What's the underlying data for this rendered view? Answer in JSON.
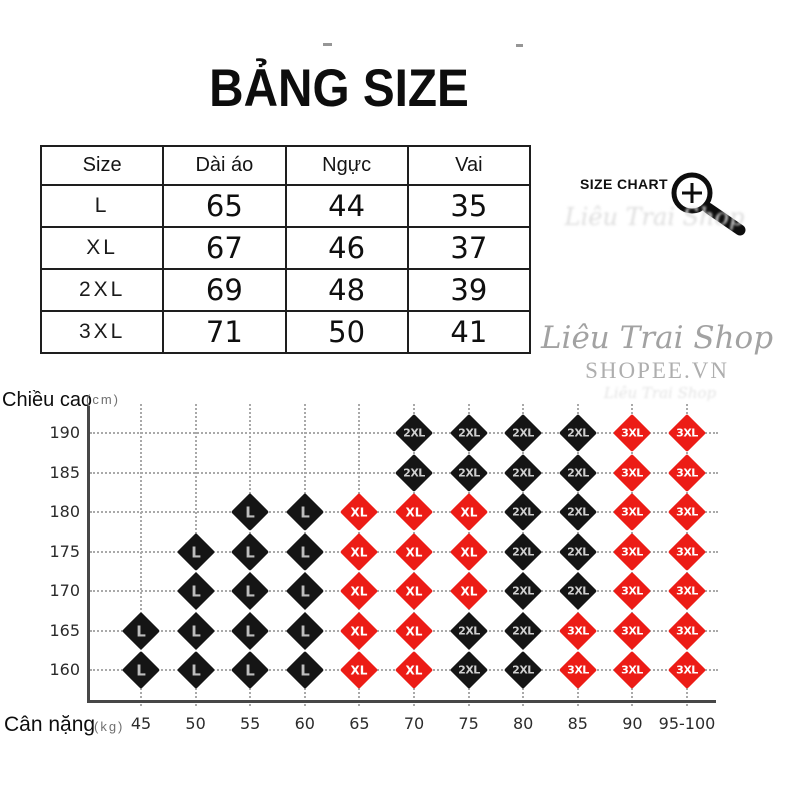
{
  "title": "BẢNG SIZE",
  "size_table": {
    "headers": [
      "Size",
      "Dài áo",
      "Ngực",
      "Vai"
    ],
    "rows": [
      [
        "L",
        "65",
        "44",
        "35"
      ],
      [
        "XL",
        "67",
        "46",
        "37"
      ],
      [
        "2XL",
        "69",
        "48",
        "39"
      ],
      [
        "3XL",
        "71",
        "50",
        "41"
      ]
    ]
  },
  "size_chart_badge": {
    "label": "SIZE CHART",
    "icon": "magnifier-plus-icon"
  },
  "watermark": {
    "line1": "Liêu Trai Shop",
    "line2": "SHOPEE.VN",
    "color": "#a2a2a2"
  },
  "chart_data": {
    "type": "scatter",
    "title": "",
    "xlabel": "Cân nặng",
    "xlabel_unit": "(kg)",
    "ylabel": "Chiều cao",
    "ylabel_unit": "(cm)",
    "x_categories": [
      "45",
      "50",
      "55",
      "60",
      "65",
      "70",
      "75",
      "80",
      "85",
      "90",
      "95-100"
    ],
    "y_categories": [
      "190",
      "185",
      "180",
      "175",
      "170",
      "165",
      "160"
    ],
    "marker": "diamond",
    "grid": true,
    "size_colors": {
      "L": "#151515",
      "XL": "#ec1c16",
      "2XL": "#151515",
      "3XL": "#ec1c16"
    },
    "label_colors": {
      "L": "#bdbdbd",
      "XL": "#ffffff",
      "2XL": "#cfcfcf",
      "3XL": "#ffffff"
    },
    "rows": [
      {
        "height": "190",
        "cells": [
          null,
          null,
          null,
          null,
          null,
          "2XL",
          "2XL",
          "2XL",
          "2XL",
          "3XL",
          "3XL"
        ]
      },
      {
        "height": "185",
        "cells": [
          null,
          null,
          null,
          null,
          null,
          "2XL",
          "2XL",
          "2XL",
          "2XL",
          "3XL",
          "3XL"
        ]
      },
      {
        "height": "180",
        "cells": [
          null,
          null,
          "L",
          "L",
          "XL",
          "XL",
          "XL",
          "2XL",
          "2XL",
          "3XL",
          "3XL"
        ]
      },
      {
        "height": "175",
        "cells": [
          null,
          "L",
          "L",
          "L",
          "XL",
          "XL",
          "XL",
          "2XL",
          "2XL",
          "3XL",
          "3XL"
        ]
      },
      {
        "height": "170",
        "cells": [
          null,
          "L",
          "L",
          "L",
          "XL",
          "XL",
          "XL",
          "2XL",
          "2XL",
          "3XL",
          "3XL"
        ]
      },
      {
        "height": "165",
        "cells": [
          "L",
          "L",
          "L",
          "L",
          "XL",
          "XL",
          "2XL",
          "2XL",
          "3XL",
          "3XL",
          "3XL"
        ]
      },
      {
        "height": "160",
        "cells": [
          "L",
          "L",
          "L",
          "L",
          "XL",
          "XL",
          "2XL",
          "2XL",
          "3XL",
          "3XL",
          "3XL"
        ]
      }
    ]
  }
}
